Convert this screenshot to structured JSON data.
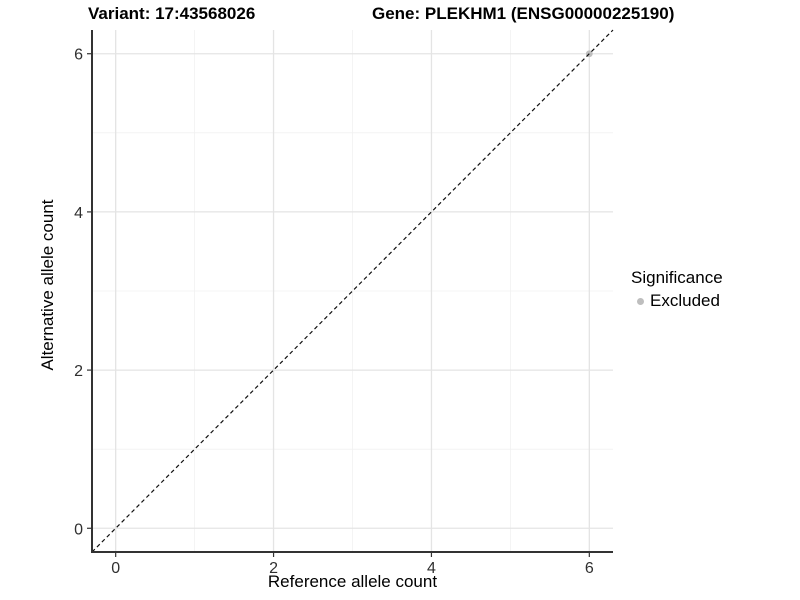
{
  "titles": {
    "variant": "Variant: 17:43568026",
    "gene": "Gene: PLEKHM1 (ENSG00000225190)"
  },
  "legend": {
    "title": "Significance",
    "items": [
      {
        "label": "Excluded",
        "color": "#bebebe"
      }
    ]
  },
  "chart_data": {
    "type": "scatter",
    "title": "Variant: 17:43568026   Gene: PLEKHM1 (ENSG00000225190)",
    "xlabel": "Reference allele count",
    "ylabel": "Alternative allele count",
    "xlim": [
      -0.3,
      6.3
    ],
    "ylim": [
      -0.3,
      6.3
    ],
    "x_ticks": [
      0,
      2,
      4,
      6
    ],
    "y_ticks": [
      0,
      2,
      4,
      6
    ],
    "x_minor_gridlines": [
      1,
      3,
      5
    ],
    "y_minor_gridlines": [
      1,
      3,
      5
    ],
    "grid": true,
    "legend_position": "right",
    "series": [
      {
        "name": "Excluded",
        "color": "#bebebe",
        "point_radius": 3.4,
        "points": [
          {
            "x": 6,
            "y": 6
          }
        ]
      }
    ],
    "reference_line": {
      "kind": "identity",
      "slope": 1,
      "intercept": 0,
      "style": "dashed",
      "color": "#111111"
    }
  },
  "style_colors": {
    "background": "#ffffff",
    "grid_major": "#e4e4e4",
    "grid_minor": "#f1f1f1",
    "axis_line": "#333333",
    "tick_mark": "#333333",
    "tick_label": "#303030",
    "point": "#bebebe"
  }
}
